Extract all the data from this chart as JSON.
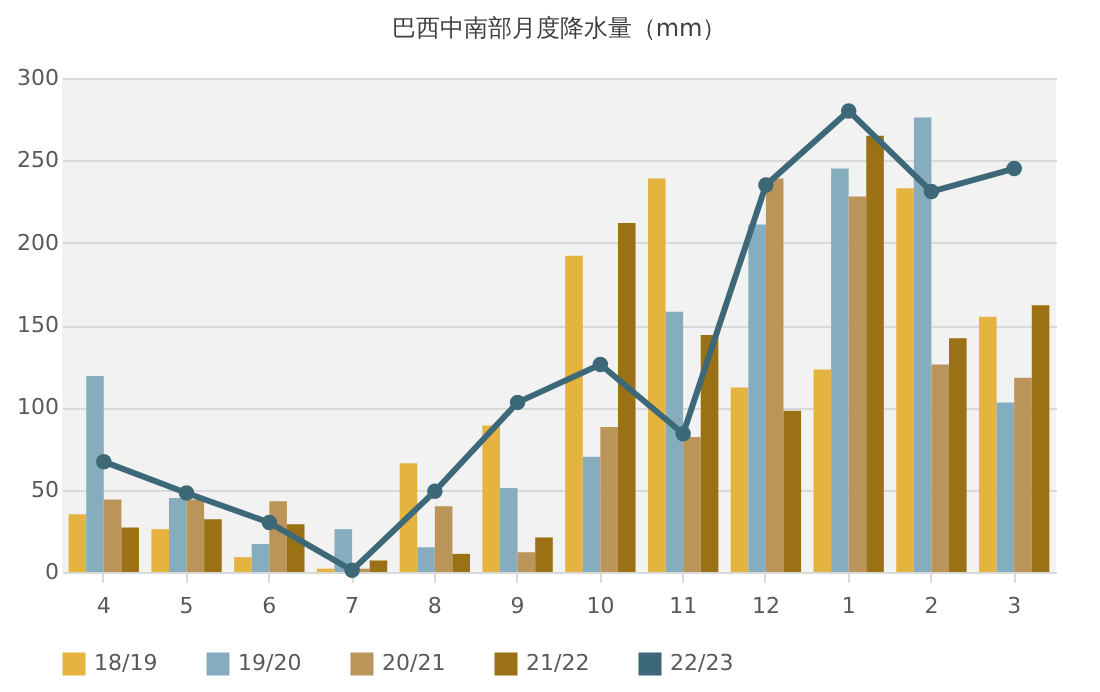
{
  "chart_data": {
    "type": "bar",
    "title": "巴西中南部月度降水量（mm）",
    "categories": [
      "4",
      "5",
      "6",
      "7",
      "8",
      "9",
      "10",
      "11",
      "12",
      "1",
      "2",
      "3"
    ],
    "series": [
      {
        "name": "18/19",
        "color": "#e5b340",
        "values": [
          35,
          26,
          9,
          2,
          66,
          89,
          192,
          239,
          112,
          123,
          233,
          155
        ]
      },
      {
        "name": "19/20",
        "color": "#86adbd",
        "values": [
          119,
          45,
          17,
          26,
          15,
          51,
          70,
          158,
          211,
          245,
          276,
          103
        ]
      },
      {
        "name": "20/21",
        "color": "#bb9459",
        "values": [
          44,
          44,
          43,
          2,
          40,
          12,
          88,
          82,
          239,
          228,
          126,
          118
        ]
      },
      {
        "name": "21/22",
        "color": "#9a7114",
        "values": [
          27,
          32,
          29,
          7,
          11,
          21,
          212,
          144,
          98,
          265,
          142,
          162
        ]
      },
      {
        "name": "22/23",
        "color": "#3d6878",
        "type": "line",
        "marker": "circle",
        "values": [
          67,
          48,
          30,
          1,
          49,
          103,
          126,
          84,
          235,
          280,
          231,
          245
        ]
      }
    ],
    "ylim": [
      0,
      300
    ],
    "yticks": [
      0,
      50,
      100,
      150,
      200,
      250,
      300
    ],
    "grid": "y",
    "legend": "bottom"
  }
}
